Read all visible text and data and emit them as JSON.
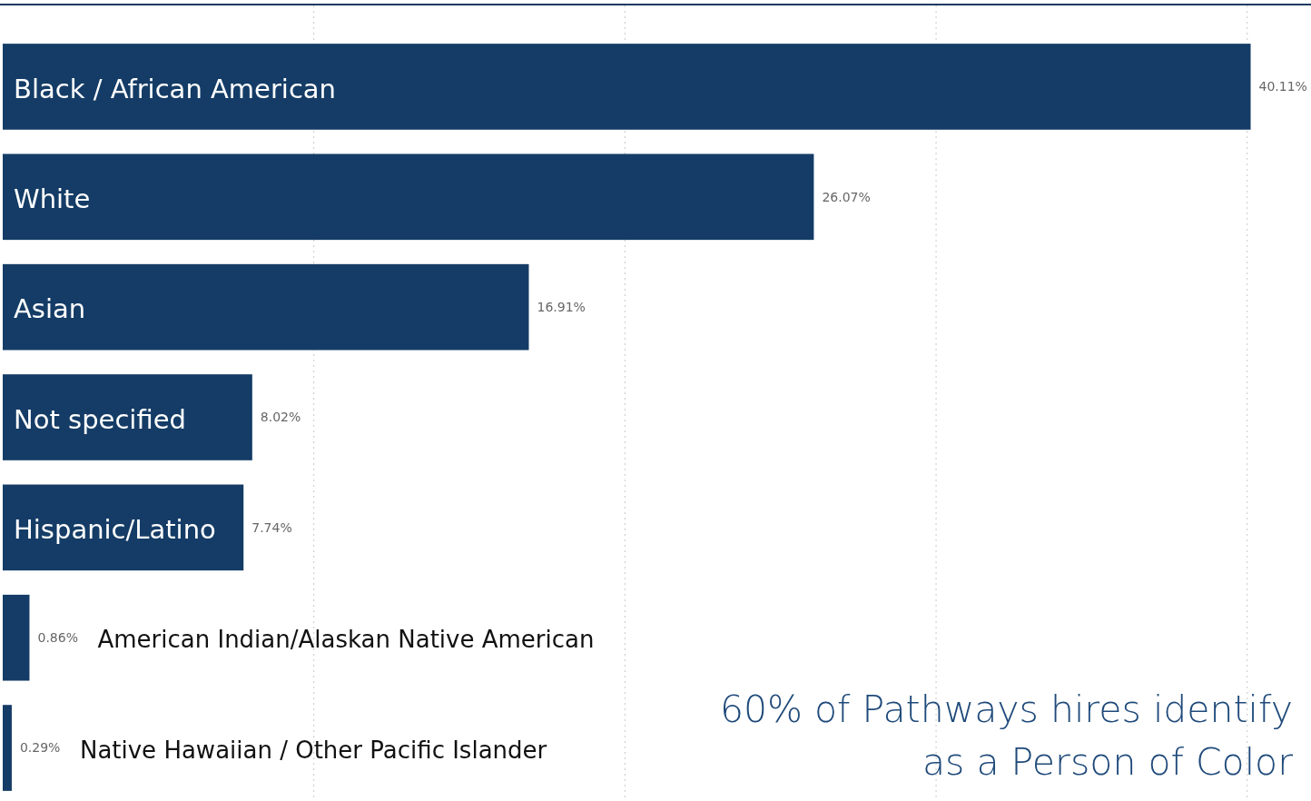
{
  "chart_data": {
    "type": "bar",
    "orientation": "horizontal",
    "categories": [
      "Black / African American",
      "White",
      "Asian",
      "Not specified",
      "Hispanic/Latino",
      "American Indian/Alaskan Native American",
      "Native Hawaiian / Other Pacific Islander"
    ],
    "values": [
      40.11,
      26.07,
      16.91,
      8.02,
      7.74,
      0.86,
      0.29
    ],
    "value_labels": [
      "40.11%",
      "26.07%",
      "16.91%",
      "8.02%",
      "7.74%",
      "0.86%",
      "0.29%"
    ],
    "color": "#143c66",
    "xlim": [
      0,
      42.05
    ],
    "xticks": [
      {
        "value": 10,
        "label": null
      },
      {
        "value": 20,
        "label": null
      },
      {
        "value": 30,
        "label": null
      },
      {
        "value": 40,
        "label": null
      }
    ],
    "grid": "x",
    "annotations": [
      "60% of Pathways hires identify as a Person of Color"
    ]
  }
}
